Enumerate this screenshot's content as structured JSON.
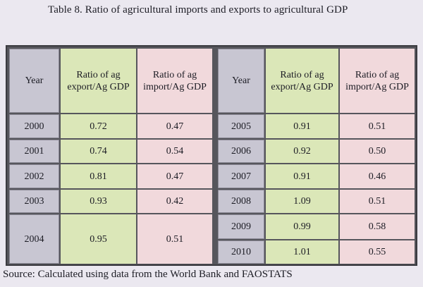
{
  "caption": "Table 8. Ratio of agricultural imports and exports to agricultural GDP",
  "source": "Source: Calculated using data from the World Bank and FAOSTATS",
  "table": {
    "headers": {
      "year": "Year",
      "export": "Ratio of ag\nexport/Ag GDP",
      "import": "Ratio of ag\nimport/Ag GDP"
    },
    "left": [
      {
        "year": "2000",
        "export": "0.72",
        "import": "0.47"
      },
      {
        "year": "2001",
        "export": "0.74",
        "import": "0.54"
      },
      {
        "year": "2002",
        "export": "0.81",
        "import": "0.47"
      },
      {
        "year": "2003",
        "export": "0.93",
        "import": "0.42"
      },
      {
        "year": "2004",
        "export": "0.95",
        "import": "0.51"
      }
    ],
    "right": [
      {
        "year": "2005",
        "export": "0.91",
        "import": "0.51"
      },
      {
        "year": "2006",
        "export": "0.92",
        "import": "0.50"
      },
      {
        "year": "2007",
        "export": "0.91",
        "import": "0.46"
      },
      {
        "year": "2008",
        "export": "1.09",
        "import": "0.51"
      },
      {
        "year": "2009",
        "export": "0.99",
        "import": "0.58"
      },
      {
        "year": "2010",
        "export": "1.01",
        "import": "0.55"
      }
    ]
  }
}
